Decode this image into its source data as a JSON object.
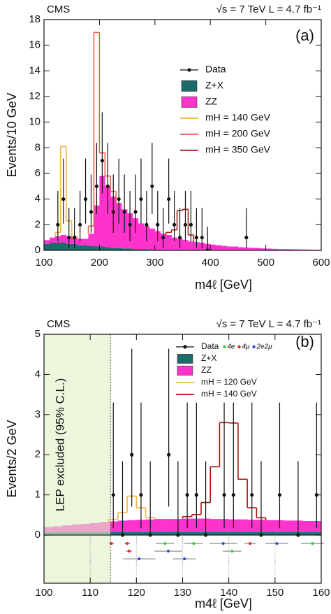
{
  "chart_data": [
    {
      "type": "histogram",
      "experiment": "CMS",
      "energy_label": "√s = 7 TeV L = 4.7 fb⁻¹",
      "panel_label": "(a)",
      "x_label": "m4ℓ [GeV]",
      "y_label": "Events/10 GeV",
      "xlim": [
        100,
        600
      ],
      "xticks": [
        100,
        200,
        300,
        400,
        500,
        600
      ],
      "ylim": [
        0,
        18
      ],
      "yticks": [
        0,
        2,
        4,
        6,
        8,
        10,
        12,
        14,
        16,
        18
      ],
      "bins": [
        100,
        110,
        120,
        130,
        140,
        150,
        160,
        170,
        180,
        190,
        200,
        210,
        220,
        230,
        240,
        250,
        260,
        270,
        280,
        290,
        300,
        310,
        320,
        330,
        340,
        350,
        360,
        370,
        380,
        390,
        400,
        410,
        420,
        430,
        440,
        450,
        460,
        470,
        480,
        490,
        500,
        510,
        520,
        530,
        540,
        550,
        560,
        570,
        580,
        590,
        600
      ],
      "series": [
        {
          "name": "Z+X",
          "style": "fill",
          "color": "#1d6b6b",
          "values": [
            0.5,
            0.6,
            0.6,
            0.6,
            0.5,
            0.5,
            0.4,
            0.4,
            0.35,
            0.3,
            0.3,
            0.25,
            0.2,
            0.2,
            0.15,
            0.15,
            0.1,
            0.1,
            0.1,
            0.05,
            0.05,
            0.05,
            0.05,
            0.05,
            0.05,
            0.05,
            0.05,
            0.05,
            0.05,
            0.05,
            0,
            0,
            0,
            0,
            0,
            0,
            0,
            0,
            0,
            0,
            0,
            0,
            0,
            0,
            0,
            0,
            0,
            0,
            0,
            0
          ]
        },
        {
          "name": "ZZ",
          "style": "fill",
          "color": "#ff33cc",
          "values": [
            0.3,
            0.4,
            0.5,
            0.6,
            0.6,
            0.5,
            0.5,
            0.5,
            0.95,
            3.2,
            5.5,
            4.75,
            4.0,
            3.5,
            3.05,
            2.75,
            2.4,
            2.0,
            1.8,
            1.65,
            1.45,
            1.25,
            1.15,
            0.95,
            0.85,
            0.75,
            0.65,
            0.6,
            0.55,
            0.45,
            0.45,
            0.4,
            0.35,
            0.3,
            0.3,
            0.25,
            0.22,
            0.2,
            0.18,
            0.15,
            0.14,
            0.12,
            0.1,
            0.1,
            0.09,
            0.08,
            0.07,
            0.06,
            0.05,
            0.05
          ]
        },
        {
          "name": "mH = 140 GeV",
          "style": "line",
          "color": "#f5b342",
          "bins": [
            120,
            130,
            140,
            150,
            160
          ],
          "values": [
            0.3,
            6.9,
            1.2,
            0.1
          ]
        },
        {
          "name": "mH = 200 GeV",
          "style": "line",
          "color": "#e8604c",
          "bins": [
            180,
            190,
            200,
            210,
            220,
            230
          ],
          "values": [
            0.6,
            13.5,
            1.8,
            0.8,
            0.4
          ]
        },
        {
          "name": "mH = 350 GeV",
          "style": "line",
          "color": "#a52018",
          "bins": [
            320,
            330,
            340,
            350,
            360,
            370
          ],
          "values": [
            0.2,
            0.6,
            2.2,
            2.4,
            0.5
          ]
        }
      ],
      "data": {
        "name": "Data",
        "x": [
          125,
          135,
          145,
          155,
          165,
          175,
          185,
          195,
          205,
          215,
          225,
          235,
          245,
          255,
          265,
          275,
          285,
          295,
          305,
          315,
          325,
          335,
          345,
          355,
          365,
          375,
          385,
          395,
          465
        ],
        "y": [
          2,
          4,
          1,
          1,
          2,
          4,
          3,
          5,
          7,
          5,
          3,
          4,
          3,
          2,
          3,
          4,
          2,
          5,
          2,
          1,
          4,
          2,
          1,
          2,
          2,
          1,
          1,
          0,
          1
        ],
        "yerr_low": [
          1.29,
          1.91,
          0.83,
          0.83,
          1.29,
          1.91,
          1.63,
          2.16,
          2.58,
          2.16,
          1.63,
          1.91,
          1.63,
          1.29,
          1.63,
          1.91,
          1.29,
          2.16,
          1.29,
          0.83,
          1.91,
          1.29,
          0.83,
          1.29,
          1.29,
          0.83,
          0.83,
          0,
          0.83
        ],
        "yerr_high": [
          2.64,
          3.16,
          2.3,
          2.3,
          2.64,
          3.16,
          2.92,
          3.38,
          3.77,
          3.38,
          2.92,
          3.16,
          2.92,
          2.64,
          2.92,
          3.16,
          2.64,
          3.38,
          2.64,
          2.3,
          3.16,
          2.64,
          2.3,
          2.64,
          2.64,
          2.3,
          2.3,
          1.84,
          2.3
        ]
      }
    },
    {
      "type": "histogram",
      "experiment": "CMS",
      "energy_label": "√s = 7 TeV L = 4.7 fb⁻¹",
      "panel_label": "(b)",
      "x_label": "m4ℓ [GeV]",
      "y_label": "Events/2 GeV",
      "xlim": [
        100,
        160
      ],
      "xticks": [
        100,
        110,
        120,
        130,
        140,
        150,
        160
      ],
      "ylim": [
        -1.2,
        5
      ],
      "yticks": [
        0,
        1,
        2,
        3,
        4,
        5
      ],
      "zero_line": true,
      "shade": {
        "xlim": [
          100,
          114.4
        ],
        "label": "LEP  excluded (95% C.L.)",
        "color": "#dff0c4"
      },
      "bins": [
        100,
        102,
        104,
        106,
        108,
        110,
        112,
        114,
        116,
        118,
        120,
        122,
        124,
        126,
        128,
        130,
        132,
        134,
        136,
        138,
        140,
        142,
        144,
        146,
        148,
        150,
        152,
        154,
        156,
        158,
        160
      ],
      "series": [
        {
          "name": "Z+X",
          "style": "fill",
          "color": "#1d6b6b",
          "values": [
            0.07,
            0.07,
            0.07,
            0.07,
            0.07,
            0.07,
            0.07,
            0.07,
            0.07,
            0.07,
            0.07,
            0.07,
            0.07,
            0.07,
            0.07,
            0.07,
            0.07,
            0.07,
            0.07,
            0.07,
            0.07,
            0.07,
            0.07,
            0.07,
            0.07,
            0.07,
            0.07,
            0.07,
            0.07,
            0.07
          ]
        },
        {
          "name": "ZZ",
          "style": "fill",
          "color": "#ff33cc",
          "values": [
            0.13,
            0.15,
            0.17,
            0.19,
            0.21,
            0.23,
            0.25,
            0.27,
            0.29,
            0.3,
            0.31,
            0.32,
            0.33,
            0.33,
            0.33,
            0.34,
            0.34,
            0.34,
            0.33,
            0.33,
            0.32,
            0.32,
            0.31,
            0.31,
            0.3,
            0.3,
            0.29,
            0.29,
            0.28,
            0.28
          ]
        },
        {
          "name": "mH = 120 GeV",
          "style": "line",
          "color": "#f5b342",
          "bins": [
            114,
            116,
            118,
            120,
            122,
            124
          ],
          "values": [
            0.05,
            0.2,
            0.6,
            0.3,
            0.05
          ]
        },
        {
          "name": "mH = 140 GeV",
          "style": "line",
          "color": "#a01a10",
          "bins": [
            130,
            132,
            134,
            136,
            138,
            140,
            142,
            144,
            146,
            148
          ],
          "values": [
            0.05,
            0.1,
            0.4,
            1.3,
            2.4,
            2.4,
            1.0,
            0.3,
            0.05
          ]
        }
      ],
      "data": {
        "name": "Data",
        "x": [
          115,
          117,
          119,
          121,
          123,
          127,
          129,
          131,
          133,
          135,
          139,
          141,
          145,
          147,
          151,
          155,
          159
        ],
        "y": [
          1,
          0,
          2,
          1,
          0,
          2,
          0,
          1,
          1,
          0,
          1,
          1,
          1,
          0,
          1,
          0,
          1
        ],
        "yerr_low": [
          0.83,
          0,
          1.29,
          0.83,
          0,
          1.29,
          0,
          0.83,
          0.83,
          0,
          0.83,
          0.83,
          0.83,
          0,
          0.83,
          0,
          0.83
        ],
        "yerr_high": [
          2.3,
          1.84,
          2.64,
          2.3,
          1.84,
          2.64,
          1.84,
          2.3,
          2.3,
          1.84,
          2.3,
          2.3,
          2.3,
          1.84,
          2.3,
          1.84,
          2.3
        ]
      },
      "channels": [
        {
          "name": "4e",
          "color": "#33cc33"
        },
        {
          "name": "4μ",
          "color": "#ee2222"
        },
        {
          "name": "2e2μ",
          "color": "#3344dd"
        }
      ],
      "events": {
        "mass": [
          114.6,
          118.0,
          118.4,
          120.6,
          126.2,
          126.9,
          130.4,
          132.4,
          138.8,
          140.7,
          144.6,
          150.4,
          158.1
        ],
        "channel": [
          1,
          1,
          1,
          2,
          0,
          2,
          2,
          0,
          2,
          0,
          1,
          2,
          0
        ],
        "mass_err": [
          0.6,
          0.7,
          0.7,
          3.5,
          2.0,
          3.0,
          2.5,
          2.0,
          3.0,
          2.0,
          1.2,
          2.5,
          2.5
        ]
      }
    }
  ]
}
